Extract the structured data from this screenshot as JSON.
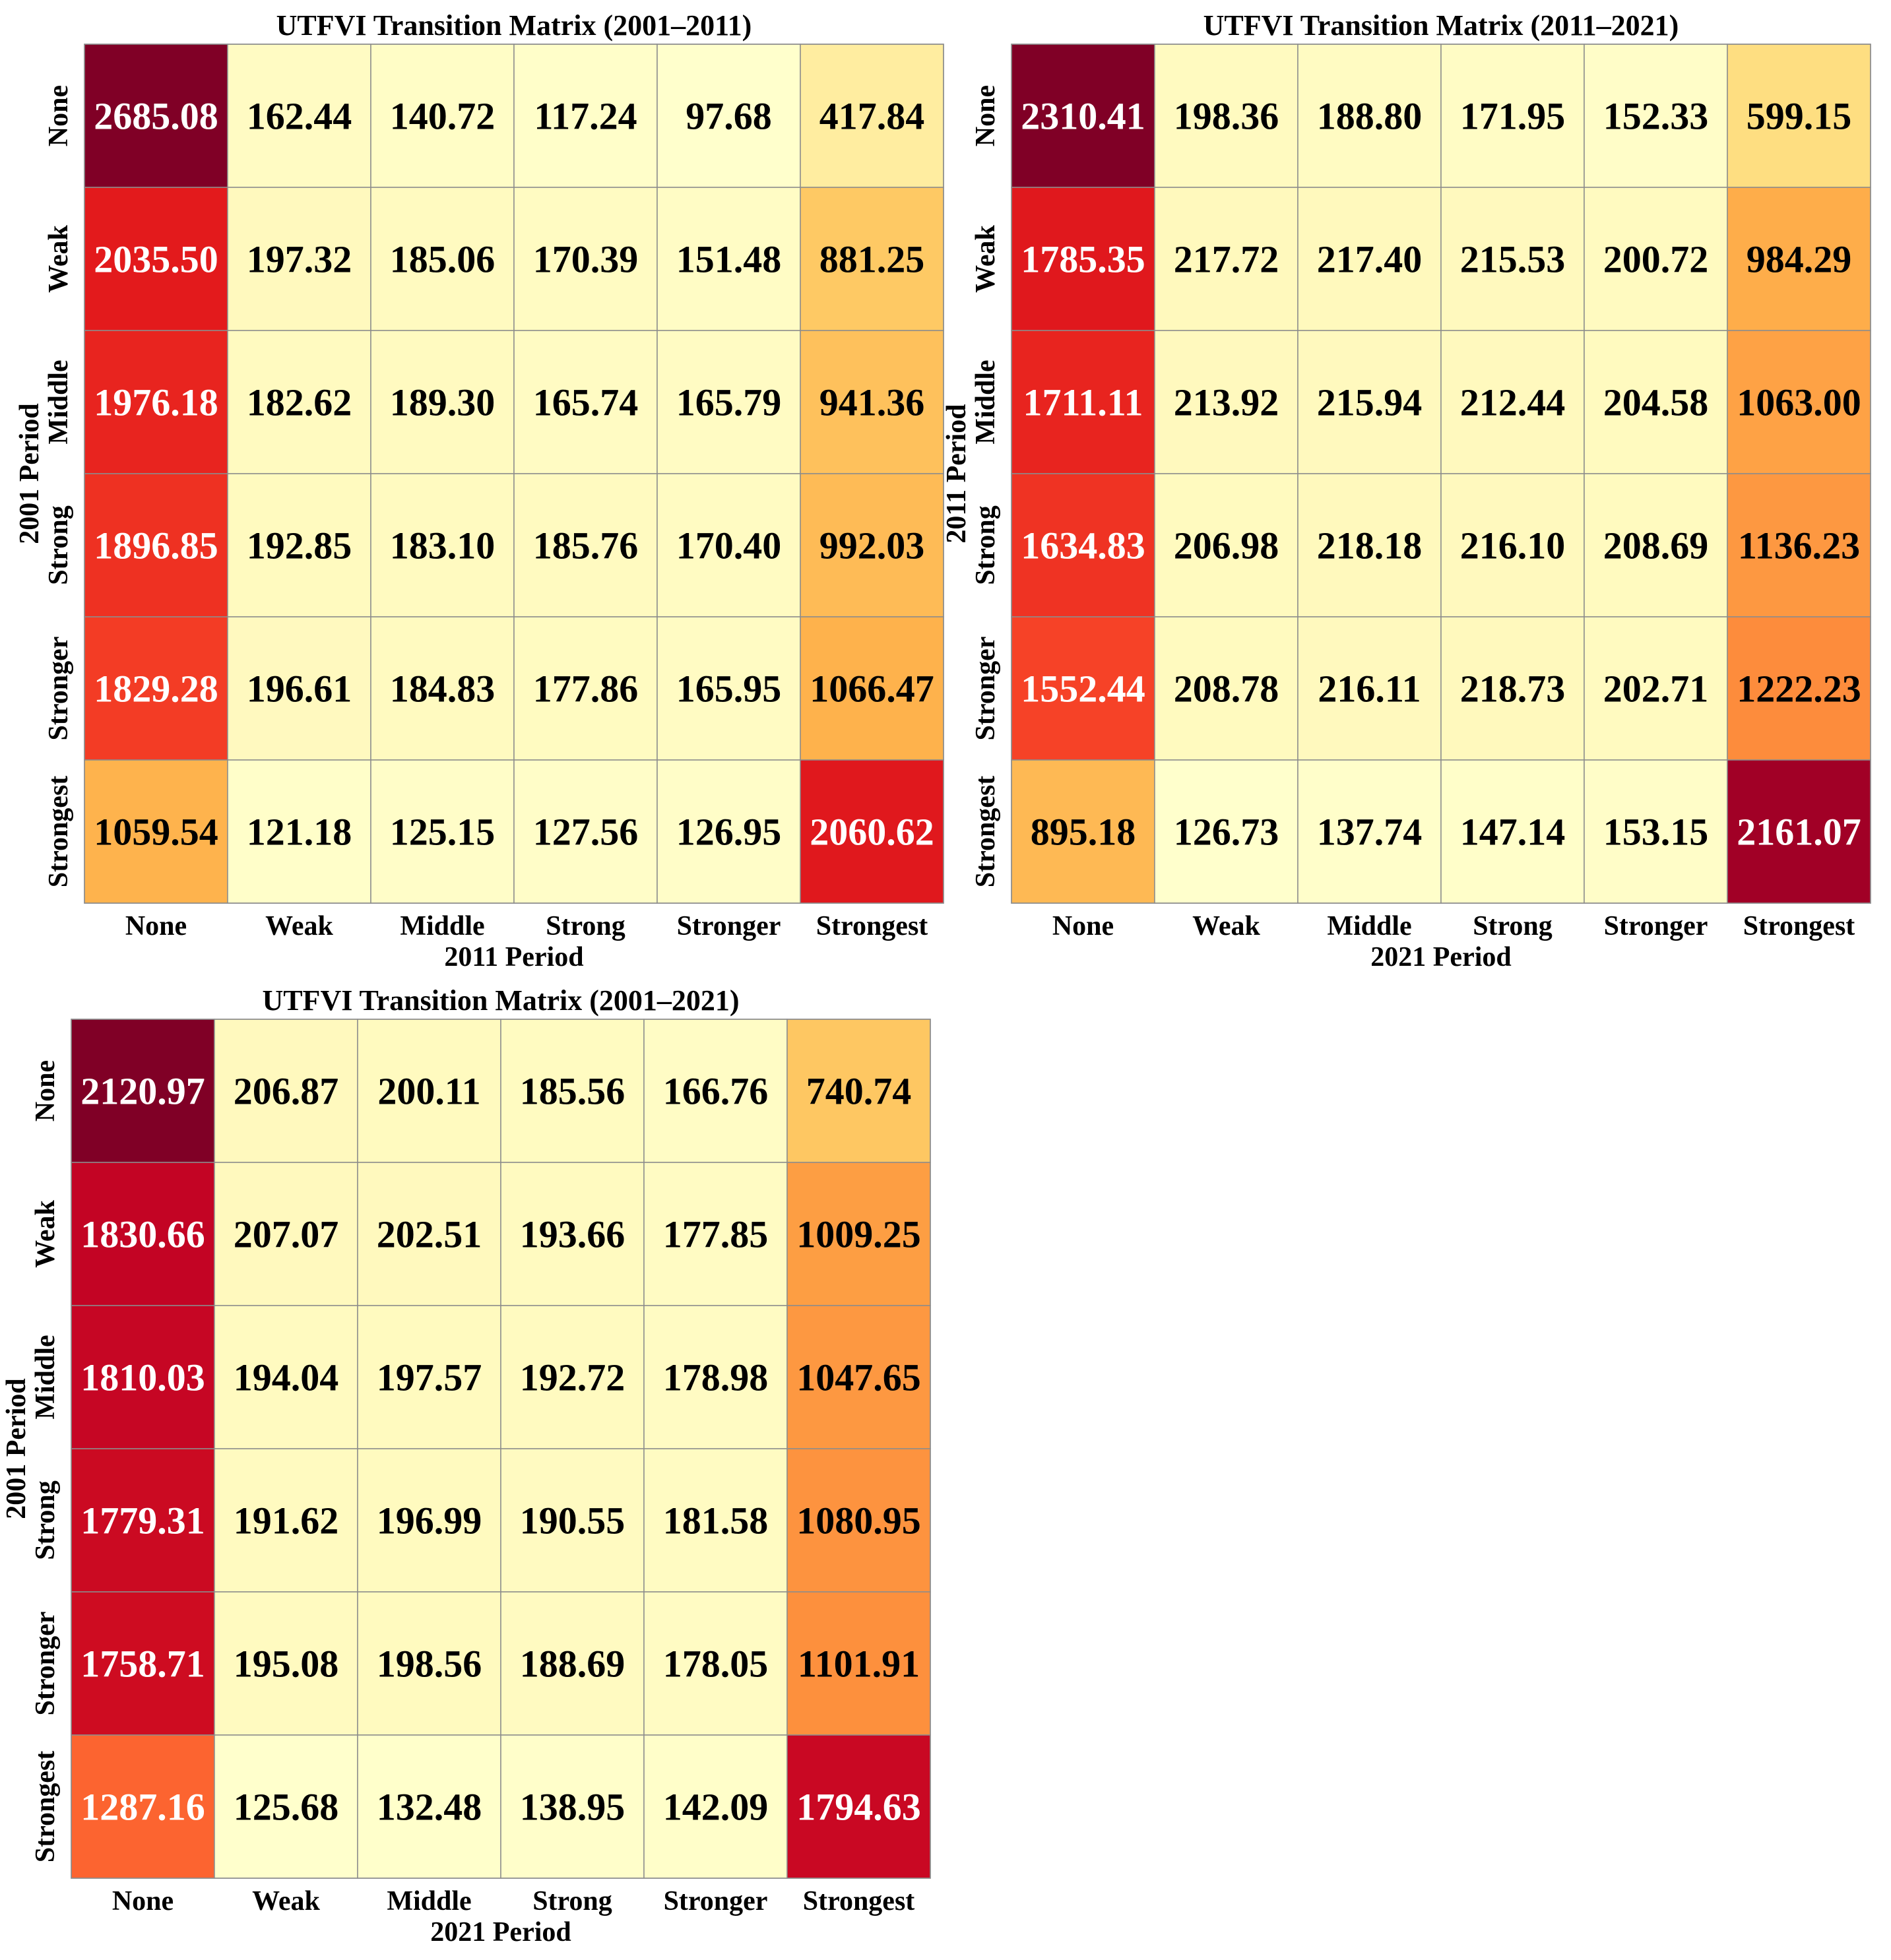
{
  "chart_data": [
    {
      "type": "heatmap",
      "title": "UTFVI Transition Matrix (2001–2011)",
      "xlabel": "2011 Period",
      "ylabel": "2001 Period",
      "x_categories": [
        "None",
        "Weak",
        "Middle",
        "Strong",
        "Stronger",
        "Strongest"
      ],
      "y_categories": [
        "None",
        "Weak",
        "Middle",
        "Strong",
        "Stronger",
        "Strongest"
      ],
      "values": [
        [
          "2685.08",
          "162.44",
          "140.72",
          "117.24",
          "97.68",
          "417.84"
        ],
        [
          "2035.50",
          "197.32",
          "185.06",
          "170.39",
          "151.48",
          "881.25"
        ],
        [
          "1976.18",
          "182.62",
          "189.30",
          "165.74",
          "165.79",
          "941.36"
        ],
        [
          "1896.85",
          "192.85",
          "183.10",
          "185.76",
          "170.40",
          "992.03"
        ],
        [
          "1829.28",
          "196.61",
          "184.83",
          "177.86",
          "165.95",
          "1066.47"
        ],
        [
          "1059.54",
          "121.18",
          "125.15",
          "127.56",
          "126.95",
          "2060.62"
        ]
      ],
      "colormap": "YlOrRd",
      "color_scale": "per-panel min to max",
      "value_labels": true
    },
    {
      "type": "heatmap",
      "title": "UTFVI Transition Matrix (2011–2021)",
      "xlabel": "2021 Period",
      "ylabel": "2011 Period",
      "x_categories": [
        "None",
        "Weak",
        "Middle",
        "Strong",
        "Stronger",
        "Strongest"
      ],
      "y_categories": [
        "None",
        "Weak",
        "Middle",
        "Strong",
        "Stronger",
        "Strongest"
      ],
      "values": [
        [
          "2310.41",
          "198.36",
          "188.80",
          "171.95",
          "152.33",
          "599.15"
        ],
        [
          "1785.35",
          "217.72",
          "217.40",
          "215.53",
          "200.72",
          "984.29"
        ],
        [
          "1711.11",
          "213.92",
          "215.94",
          "212.44",
          "204.58",
          "1063.00"
        ],
        [
          "1634.83",
          "206.98",
          "218.18",
          "216.10",
          "208.69",
          "1136.23"
        ],
        [
          "1552.44",
          "208.78",
          "216.11",
          "218.73",
          "202.71",
          "1222.23"
        ],
        [
          "895.18",
          "126.73",
          "137.74",
          "147.14",
          "153.15",
          "2161.07"
        ]
      ],
      "colormap": "YlOrRd",
      "color_scale": "per-panel min to max",
      "value_labels": true
    },
    {
      "type": "heatmap",
      "title": "UTFVI Transition Matrix (2001–2021)",
      "xlabel": "2021 Period",
      "ylabel": "2001 Period",
      "x_categories": [
        "None",
        "Weak",
        "Middle",
        "Strong",
        "Stronger",
        "Strongest"
      ],
      "y_categories": [
        "None",
        "Weak",
        "Middle",
        "Strong",
        "Stronger",
        "Strongest"
      ],
      "values": [
        [
          "2120.97",
          "206.87",
          "200.11",
          "185.56",
          "166.76",
          "740.74"
        ],
        [
          "1830.66",
          "207.07",
          "202.51",
          "193.66",
          "177.85",
          "1009.25"
        ],
        [
          "1810.03",
          "194.04",
          "197.57",
          "192.72",
          "178.98",
          "1047.65"
        ],
        [
          "1779.31",
          "191.62",
          "196.99",
          "190.55",
          "181.58",
          "1080.95"
        ],
        [
          "1758.71",
          "195.08",
          "198.56",
          "188.69",
          "178.05",
          "1101.91"
        ],
        [
          "1287.16",
          "125.68",
          "132.48",
          "138.95",
          "142.09",
          "1794.63"
        ]
      ],
      "colormap": "YlOrRd",
      "color_scale": "per-panel min to max",
      "value_labels": true
    }
  ]
}
